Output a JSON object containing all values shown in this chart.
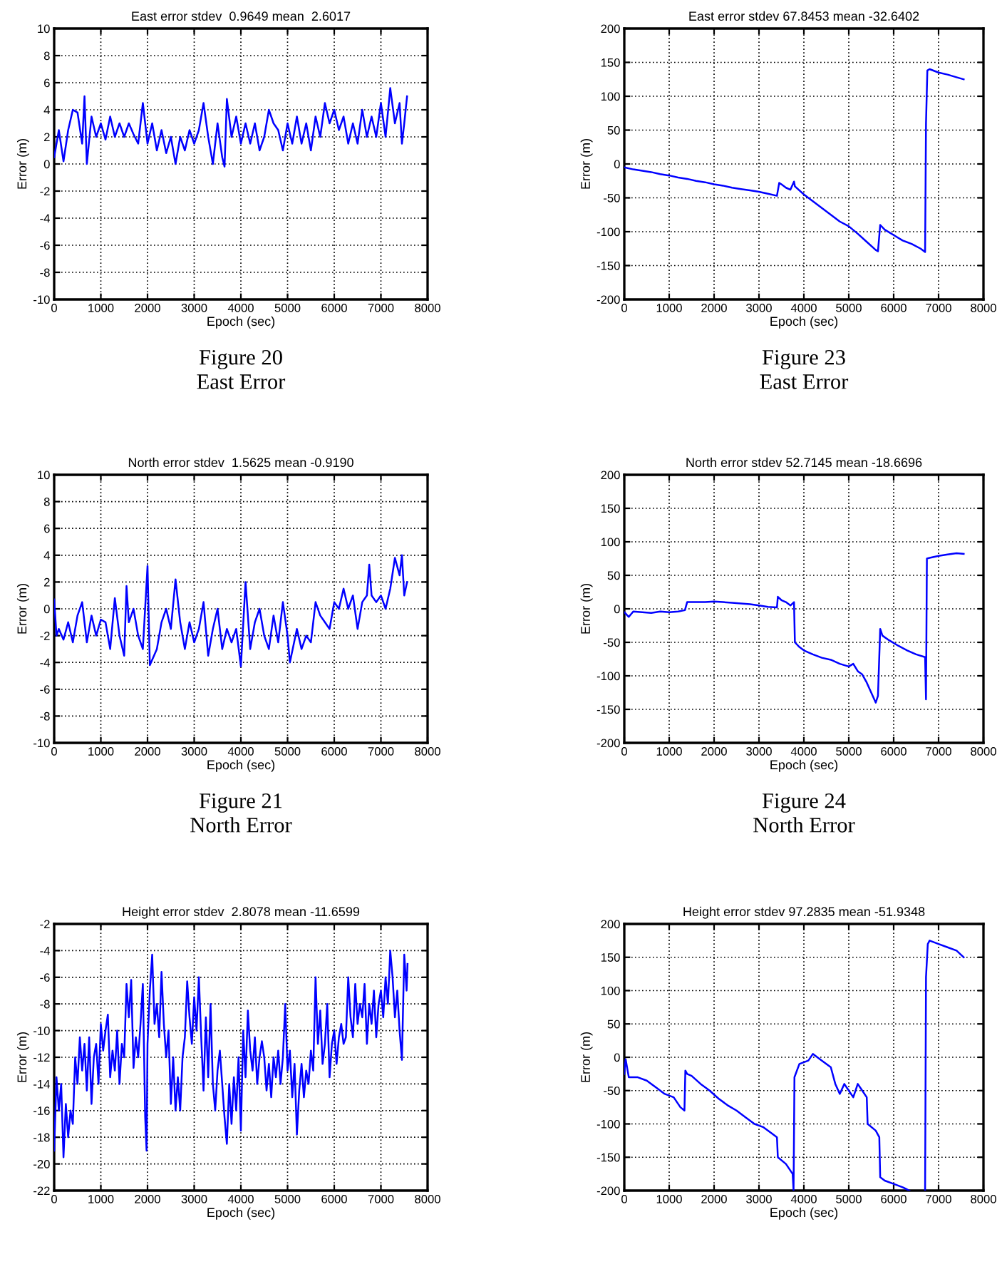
{
  "chart_data": [
    {
      "type": "line",
      "title": "East error stdev  0.9649 mean  2.6017",
      "xlabel": "Epoch (sec)",
      "ylabel": "Error (m)",
      "xlim": [
        0,
        8000
      ],
      "xticks": [
        0,
        1000,
        2000,
        3000,
        4000,
        5000,
        6000,
        7000,
        8000
      ],
      "ylim": [
        -10,
        10
      ],
      "yticks": [
        -10,
        -8,
        -6,
        -4,
        -2,
        0,
        2,
        4,
        6,
        8,
        10
      ],
      "grid": true,
      "line_style": "solid",
      "annotations": [
        "Figure 20",
        "East Error"
      ],
      "series": [
        {
          "color": "#0000ff",
          "x": [
            0,
            100,
            200,
            300,
            400,
            500,
            600,
            650,
            700,
            800,
            900,
            1000,
            1100,
            1200,
            1300,
            1400,
            1500,
            1600,
            1700,
            1800,
            1900,
            2000,
            2100,
            2200,
            2300,
            2400,
            2500,
            2600,
            2700,
            2800,
            2900,
            3000,
            3100,
            3200,
            3300,
            3400,
            3500,
            3600,
            3650,
            3700,
            3800,
            3900,
            4000,
            4100,
            4200,
            4300,
            4400,
            4500,
            4600,
            4700,
            4800,
            4900,
            5000,
            5100,
            5200,
            5300,
            5400,
            5500,
            5600,
            5700,
            5800,
            5900,
            6000,
            6100,
            6200,
            6300,
            6400,
            6500,
            6600,
            6700,
            6800,
            6900,
            7000,
            7100,
            7200,
            7300,
            7400,
            7450,
            7500,
            7560
          ],
          "values": [
            0.5,
            2.5,
            0.2,
            2.5,
            4,
            3.8,
            1.5,
            5,
            0,
            3.5,
            2,
            3,
            1.8,
            3.5,
            2,
            3,
            2,
            3,
            2.2,
            1.5,
            4.5,
            1.5,
            3,
            1,
            2.5,
            0.8,
            2,
            0,
            2,
            1,
            2.5,
            1.5,
            2.5,
            4.5,
            2,
            0,
            3,
            0.5,
            -0.2,
            4.8,
            2,
            3.5,
            1.5,
            3,
            1.5,
            3,
            1,
            2,
            4,
            3,
            2.5,
            1,
            3,
            1.5,
            3.5,
            1.5,
            3,
            1,
            3.5,
            2,
            4.5,
            3,
            4,
            2.5,
            3.5,
            1.5,
            3,
            1.5,
            4,
            2,
            3.5,
            2,
            4.5,
            2,
            5.6,
            3,
            4.5,
            1.5,
            3,
            5
          ]
        }
      ]
    },
    {
      "type": "line",
      "title": "East error stdev 67.8453 mean -32.6402",
      "xlabel": "Epoch (sec)",
      "ylabel": "Error (m)",
      "xlim": [
        0,
        8000
      ],
      "xticks": [
        0,
        1000,
        2000,
        3000,
        4000,
        5000,
        6000,
        7000,
        8000
      ],
      "ylim": [
        -200,
        200
      ],
      "yticks": [
        -200,
        -150,
        -100,
        -50,
        0,
        50,
        100,
        150,
        200
      ],
      "grid": true,
      "line_style": "solid",
      "annotations": [
        "Figure 23",
        "East Error"
      ],
      "series": [
        {
          "color": "#0000ff",
          "x": [
            0,
            200,
            400,
            600,
            800,
            1000,
            1200,
            1400,
            1600,
            1800,
            2000,
            2200,
            2400,
            2600,
            2800,
            3000,
            3200,
            3400,
            3450,
            3500,
            3600,
            3700,
            3780,
            3800,
            4000,
            4200,
            4400,
            4600,
            4800,
            5000,
            5200,
            5400,
            5600,
            5650,
            5700,
            5800,
            6000,
            6200,
            6400,
            6600,
            6700,
            6720,
            6750,
            6800,
            7000,
            7200,
            7400,
            7560
          ],
          "values": [
            -5,
            -8,
            -10,
            -12,
            -15,
            -17,
            -20,
            -22,
            -25,
            -27,
            -30,
            -32,
            -35,
            -37,
            -39,
            -41,
            -44,
            -47,
            -28,
            -30,
            -35,
            -38,
            -26,
            -33,
            -45,
            -55,
            -65,
            -75,
            -85,
            -92,
            -103,
            -115,
            -127,
            -129,
            -90,
            -97,
            -105,
            -113,
            -118,
            -125,
            -130,
            60,
            138,
            140,
            135,
            132,
            128,
            125
          ]
        }
      ]
    },
    {
      "type": "line",
      "title": "North error stdev  1.5625 mean -0.9190",
      "xlabel": "Epoch (sec)",
      "ylabel": "Error (m)",
      "xlim": [
        0,
        8000
      ],
      "xticks": [
        0,
        1000,
        2000,
        3000,
        4000,
        5000,
        6000,
        7000,
        8000
      ],
      "ylim": [
        -10,
        10
      ],
      "yticks": [
        -10,
        -8,
        -6,
        -4,
        -2,
        0,
        2,
        4,
        6,
        8,
        10
      ],
      "grid": true,
      "line_style": "solid",
      "annotations": [
        "Figure 21",
        "North Error"
      ],
      "series": [
        {
          "color": "#0000ff",
          "x": [
            0,
            50,
            100,
            200,
            300,
            400,
            500,
            600,
            700,
            800,
            900,
            1000,
            1100,
            1200,
            1300,
            1400,
            1500,
            1550,
            1600,
            1700,
            1800,
            1900,
            2000,
            2050,
            2200,
            2300,
            2400,
            2500,
            2600,
            2700,
            2800,
            2900,
            3000,
            3100,
            3200,
            3300,
            3400,
            3500,
            3600,
            3700,
            3800,
            3900,
            4000,
            4100,
            4200,
            4300,
            4400,
            4500,
            4600,
            4700,
            4800,
            4900,
            5000,
            5050,
            5200,
            5300,
            5400,
            5500,
            5600,
            5700,
            5800,
            5900,
            6000,
            6100,
            6200,
            6300,
            6400,
            6500,
            6600,
            6700,
            6750,
            6800,
            6900,
            7000,
            7100,
            7200,
            7300,
            7400,
            7450,
            7500,
            7560
          ],
          "values": [
            0.7,
            -2,
            -1.5,
            -2.3,
            -1,
            -2.5,
            -0.5,
            0.5,
            -2.5,
            -0.5,
            -2,
            -0.8,
            -1,
            -3,
            0.8,
            -2,
            -3.5,
            1.7,
            -1,
            0,
            -2,
            -3,
            3.2,
            -4.2,
            -3,
            -1,
            0,
            -1.5,
            2.2,
            -1,
            -3,
            -1,
            -2.5,
            -1.5,
            0.5,
            -3.5,
            -1.5,
            0,
            -3,
            -1.5,
            -2.5,
            -1.5,
            -4.3,
            2,
            -3,
            -1,
            0,
            -2,
            -3,
            -0.5,
            -2.5,
            0.5,
            -2,
            -4,
            -1.5,
            -3,
            -2,
            -2.5,
            0.5,
            -0.5,
            -1,
            -1.5,
            0.5,
            0,
            1.5,
            0,
            1,
            -1.5,
            0.5,
            1,
            3.3,
            1,
            0.5,
            1,
            0,
            1.5,
            3.8,
            2.5,
            4,
            1,
            2
          ]
        }
      ]
    },
    {
      "type": "line",
      "title": "North error stdev 52.7145 mean -18.6696",
      "xlabel": "Epoch (sec)",
      "ylabel": "Error (m)",
      "xlim": [
        0,
        8000
      ],
      "xticks": [
        0,
        1000,
        2000,
        3000,
        4000,
        5000,
        6000,
        7000,
        8000
      ],
      "ylim": [
        -200,
        200
      ],
      "yticks": [
        -200,
        -150,
        -100,
        -50,
        0,
        50,
        100,
        150,
        200
      ],
      "grid": true,
      "line_style": "solid",
      "annotations": [
        "Figure 24",
        "North Error"
      ],
      "series": [
        {
          "color": "#0000ff",
          "x": [
            0,
            100,
            200,
            400,
            600,
            800,
            1000,
            1200,
            1350,
            1400,
            1600,
            1800,
            2000,
            2200,
            2400,
            2600,
            2800,
            3000,
            3200,
            3400,
            3420,
            3500,
            3600,
            3700,
            3780,
            3800,
            3900,
            4000,
            4200,
            4400,
            4600,
            4800,
            5000,
            5100,
            5200,
            5300,
            5400,
            5500,
            5600,
            5650,
            5700,
            5750,
            5900,
            6100,
            6300,
            6500,
            6700,
            6720,
            6740,
            6800,
            7000,
            7200,
            7400,
            7560
          ],
          "values": [
            -5,
            -12,
            -4,
            -5,
            -6,
            -4,
            -5,
            -4,
            -2,
            10,
            10,
            10,
            11,
            10,
            9,
            8,
            7,
            5,
            3,
            2,
            18,
            13,
            10,
            5,
            10,
            -50,
            -57,
            -62,
            -68,
            -73,
            -76,
            -82,
            -86,
            -82,
            -93,
            -98,
            -110,
            -125,
            -140,
            -130,
            -30,
            -40,
            -47,
            -55,
            -62,
            -68,
            -72,
            -135,
            75,
            76,
            79,
            81,
            83,
            82
          ]
        }
      ]
    },
    {
      "type": "line",
      "title": "Height error stdev  2.8078 mean -11.6599",
      "xlabel": "Epoch (sec)",
      "ylabel": "Error (m)",
      "xlim": [
        0,
        8000
      ],
      "xticks": [
        0,
        1000,
        2000,
        3000,
        4000,
        5000,
        6000,
        7000,
        8000
      ],
      "ylim": [
        -22,
        -2
      ],
      "yticks": [
        -22,
        -20,
        -18,
        -16,
        -14,
        -12,
        -10,
        -8,
        -6,
        -4,
        -2
      ],
      "grid": true,
      "line_style": "solid",
      "series": [
        {
          "color": "#0000ff",
          "x": [
            0,
            50,
            100,
            150,
            200,
            250,
            300,
            350,
            400,
            450,
            500,
            550,
            600,
            650,
            700,
            750,
            800,
            850,
            900,
            950,
            1000,
            1050,
            1100,
            1150,
            1200,
            1250,
            1300,
            1350,
            1400,
            1450,
            1500,
            1550,
            1600,
            1650,
            1700,
            1750,
            1800,
            1850,
            1900,
            1950,
            1980,
            2000,
            2050,
            2100,
            2150,
            2200,
            2250,
            2300,
            2350,
            2400,
            2450,
            2500,
            2550,
            2600,
            2650,
            2700,
            2750,
            2800,
            2850,
            2900,
            2950,
            3000,
            3050,
            3100,
            3150,
            3200,
            3250,
            3300,
            3350,
            3400,
            3450,
            3500,
            3550,
            3600,
            3650,
            3700,
            3750,
            3800,
            3850,
            3900,
            3950,
            4000,
            4050,
            4100,
            4150,
            4200,
            4250,
            4300,
            4350,
            4400,
            4450,
            4500,
            4550,
            4600,
            4650,
            4700,
            4750,
            4800,
            4850,
            4900,
            4950,
            5000,
            5050,
            5100,
            5150,
            5200,
            5250,
            5300,
            5350,
            5400,
            5450,
            5500,
            5550,
            5600,
            5650,
            5700,
            5750,
            5800,
            5850,
            5900,
            5950,
            6000,
            6050,
            6100,
            6150,
            6200,
            6250,
            6300,
            6350,
            6400,
            6450,
            6500,
            6550,
            6600,
            6650,
            6700,
            6750,
            6800,
            6850,
            6900,
            6950,
            7000,
            7050,
            7100,
            7150,
            7200,
            7250,
            7300,
            7350,
            7400,
            7450,
            7500,
            7550,
            7570
          ],
          "values": [
            -19,
            -13.5,
            -16,
            -14,
            -19.5,
            -15.5,
            -18,
            -16,
            -17,
            -12,
            -14,
            -10.5,
            -13,
            -11,
            -14.5,
            -10.5,
            -15.5,
            -12,
            -11,
            -14,
            -9.5,
            -11.5,
            -10,
            -8.8,
            -13.5,
            -11.5,
            -13,
            -10,
            -14,
            -11,
            -12,
            -6.5,
            -9,
            -6.2,
            -12.8,
            -10.5,
            -12,
            -9.5,
            -6.5,
            -16.5,
            -19,
            -11,
            -7,
            -4.3,
            -9.5,
            -8,
            -10.5,
            -5.6,
            -9.5,
            -12,
            -10,
            -15.5,
            -12,
            -16,
            -13.5,
            -16,
            -12,
            -10.5,
            -6.3,
            -9,
            -11,
            -7.5,
            -10,
            -6,
            -10.5,
            -14.5,
            -9,
            -13.5,
            -8,
            -14,
            -16,
            -13,
            -11.5,
            -14,
            -16.5,
            -18.5,
            -14,
            -17,
            -13.5,
            -16,
            -12,
            -17.5,
            -10,
            -13.5,
            -8.5,
            -11.5,
            -13,
            -10.5,
            -14,
            -12,
            -10.8,
            -12,
            -14.5,
            -12.5,
            -15,
            -12,
            -13.5,
            -11.5,
            -14,
            -12,
            -8,
            -13,
            -11.5,
            -15,
            -12.5,
            -17.8,
            -14.5,
            -12.5,
            -15,
            -13,
            -14,
            -11.5,
            -13,
            -6,
            -11,
            -8.5,
            -12.5,
            -11,
            -8,
            -13.5,
            -11,
            -10,
            -12.5,
            -10.5,
            -9.5,
            -11,
            -10.5,
            -6,
            -9,
            -10.5,
            -6.5,
            -9.5,
            -8,
            -9,
            -6.5,
            -11,
            -8,
            -9.5,
            -7,
            -10.5,
            -8,
            -7,
            -9,
            -6,
            -8,
            -4,
            -6,
            -9,
            -7,
            -10,
            -12.2,
            -4.3,
            -7,
            -5
          ]
        }
      ]
    },
    {
      "type": "line",
      "title": "Height error stdev 97.2835 mean -51.9348",
      "xlabel": "Epoch (sec)",
      "ylabel": "Error (m)",
      "xlim": [
        0,
        8000
      ],
      "xticks": [
        0,
        1000,
        2000,
        3000,
        4000,
        5000,
        6000,
        7000,
        8000
      ],
      "ylim": [
        -200,
        200
      ],
      "yticks": [
        -200,
        -150,
        -100,
        -50,
        0,
        50,
        100,
        150,
        200
      ],
      "grid": true,
      "line_style": "solid",
      "series": [
        {
          "color": "#0000ff",
          "x": [
            0,
            30,
            100,
            300,
            500,
            700,
            900,
            1100,
            1250,
            1340,
            1360,
            1400,
            1500,
            1700,
            1900,
            2100,
            2300,
            2500,
            2700,
            2900,
            3100,
            3300,
            3400,
            3420,
            3600,
            3750,
            3770,
            3790,
            3900,
            4100,
            4200,
            4400,
            4600,
            4700,
            4800,
            4900,
            5000,
            5100,
            5200,
            5300,
            5400,
            5420,
            5600,
            5680,
            5700,
            5800,
            6000,
            6200,
            6350,
            6400,
            6600,
            6700,
            6720,
            6760,
            6800,
            7000,
            7200,
            7400,
            7560
          ],
          "values": [
            -25,
            -3,
            -30,
            -30,
            -35,
            -45,
            -55,
            -60,
            -75,
            -80,
            -20,
            -25,
            -28,
            -40,
            -50,
            -62,
            -72,
            -80,
            -90,
            -100,
            -105,
            -115,
            -120,
            -150,
            -160,
            -175,
            -200,
            -30,
            -10,
            -5,
            5,
            -5,
            -15,
            -40,
            -55,
            -40,
            -50,
            -60,
            -40,
            -50,
            -60,
            -100,
            -110,
            -120,
            -180,
            -185,
            -190,
            -195,
            -200,
            null,
            null,
            -200,
            120,
            170,
            175,
            170,
            165,
            160,
            150
          ]
        }
      ]
    }
  ]
}
